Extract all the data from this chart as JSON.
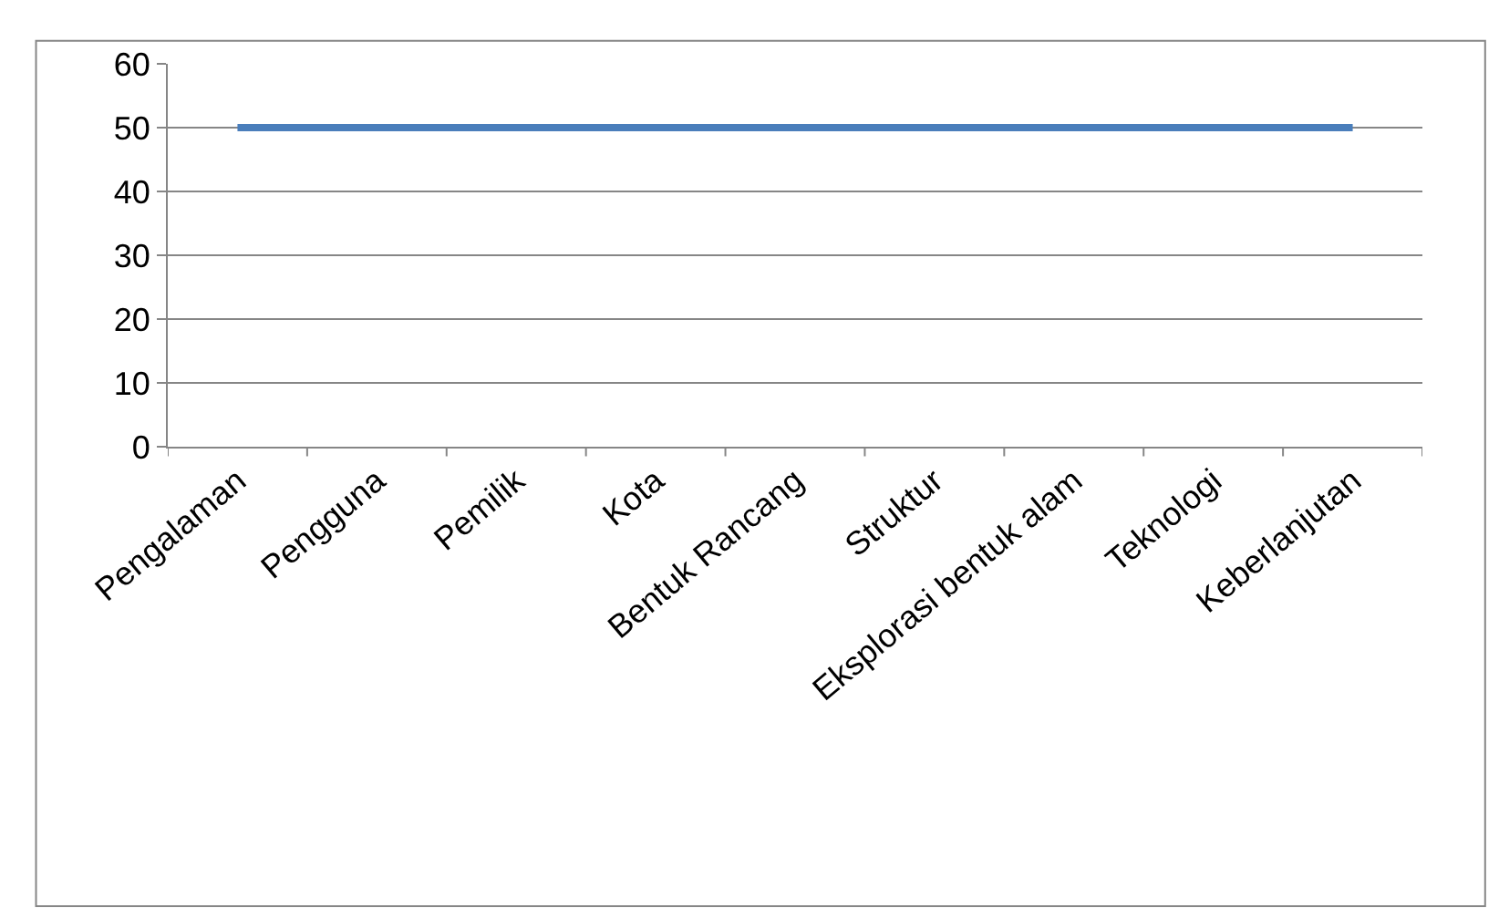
{
  "chart_data": {
    "type": "line",
    "categories": [
      "Pengalaman",
      "Pengguna",
      "Pemilik",
      "Kota",
      "Bentuk Rancang",
      "Struktur",
      "Eksplorasi bentuk alam",
      "Teknologi",
      "Keberlanjutan"
    ],
    "series": [
      {
        "color": "#4a7ebb",
        "values": [
          50,
          50,
          50,
          50,
          50,
          50,
          50,
          50,
          50
        ]
      }
    ],
    "ylim": [
      0,
      60
    ],
    "yticks": [
      0,
      10,
      20,
      30,
      40,
      50,
      60
    ],
    "grid": "y",
    "marker": "none",
    "line_style": "solid"
  }
}
